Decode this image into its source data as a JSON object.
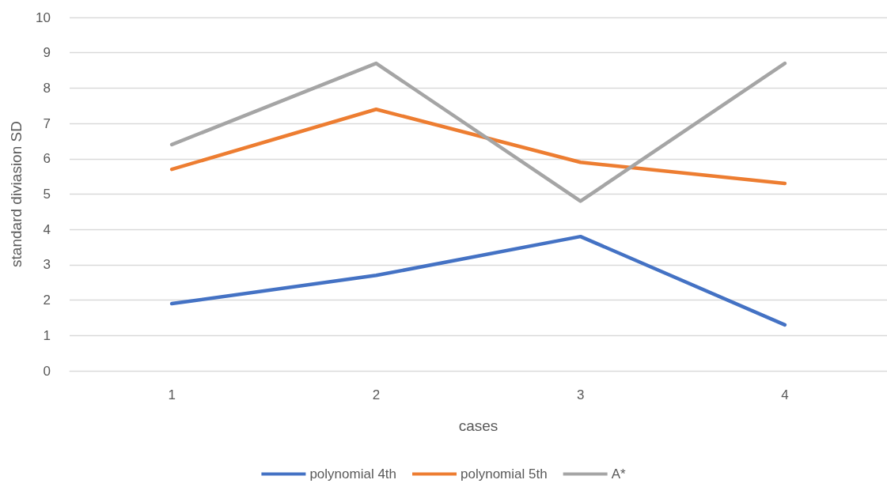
{
  "chart_data": {
    "type": "line",
    "xlabel": "cases",
    "ylabel": "standard diviasion SD",
    "categories": [
      "1",
      "2",
      "3",
      "4"
    ],
    "series": [
      {
        "name": "polynomial 4th",
        "color": "#4472c4",
        "values": [
          1.9,
          2.7,
          3.8,
          1.3
        ]
      },
      {
        "name": "polynomial 5th",
        "color": "#ed7d31",
        "values": [
          5.7,
          7.4,
          5.9,
          5.3
        ]
      },
      {
        "name": "A*",
        "color": "#a5a5a5",
        "values": [
          6.4,
          8.7,
          4.8,
          8.7
        ]
      }
    ],
    "ylim": [
      0,
      10
    ],
    "yticks": [
      0,
      1,
      2,
      3,
      4,
      5,
      6,
      7,
      8,
      9,
      10
    ],
    "grid": "y",
    "legend": "bottom",
    "marker": "none",
    "line_style": "solid"
  }
}
